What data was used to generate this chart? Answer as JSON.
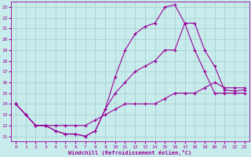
{
  "background_color": "#c8ecec",
  "line_color": "#990099",
  "grid_color": "#a0cccc",
  "xlabel": "Windchill (Refroidissement éolien,°C)",
  "xlim": [
    -0.5,
    23.5
  ],
  "ylim": [
    10.5,
    23.5
  ],
  "yticks": [
    11,
    12,
    13,
    14,
    15,
    16,
    17,
    18,
    19,
    20,
    21,
    22,
    23
  ],
  "xticks": [
    0,
    1,
    2,
    3,
    4,
    5,
    6,
    7,
    8,
    9,
    10,
    11,
    12,
    13,
    14,
    15,
    16,
    17,
    18,
    19,
    20,
    21,
    22,
    23
  ],
  "curve_top_x": [
    0,
    1,
    2,
    3,
    4,
    5,
    6,
    7,
    8,
    9,
    10,
    11,
    12,
    13,
    14,
    15,
    16,
    17,
    18,
    19,
    20,
    21,
    22,
    23
  ],
  "curve_top_y": [
    14,
    13,
    12,
    12,
    11.5,
    11.2,
    11.2,
    11,
    11.5,
    13.5,
    16.5,
    19,
    20.5,
    21.2,
    21.5,
    23,
    23.2,
    21.5,
    21.5,
    19,
    17.5,
    15.3,
    15.2,
    15.3
  ],
  "curve_mid_x": [
    0,
    1,
    2,
    3,
    4,
    5,
    6,
    7,
    8,
    9,
    10,
    11,
    12,
    13,
    14,
    15,
    16,
    17,
    18,
    19,
    20,
    21,
    22,
    23
  ],
  "curve_mid_y": [
    14,
    13,
    12,
    12,
    11.5,
    11.2,
    11.2,
    11,
    11.5,
    13.5,
    15,
    16,
    17,
    17.5,
    18,
    19,
    19.0,
    21.5,
    19,
    17,
    15,
    15,
    15,
    15
  ],
  "curve_bot_x": [
    0,
    1,
    2,
    3,
    4,
    5,
    6,
    7,
    8,
    9,
    10,
    11,
    12,
    13,
    14,
    15,
    16,
    17,
    18,
    19,
    20,
    21,
    22,
    23
  ],
  "curve_bot_y": [
    14,
    13,
    12,
    12,
    12,
    12,
    12,
    12,
    12.5,
    13,
    13.5,
    14,
    14,
    14,
    14,
    14.5,
    15,
    15,
    15,
    15.5,
    16,
    15.5,
    15.5,
    15.5
  ]
}
